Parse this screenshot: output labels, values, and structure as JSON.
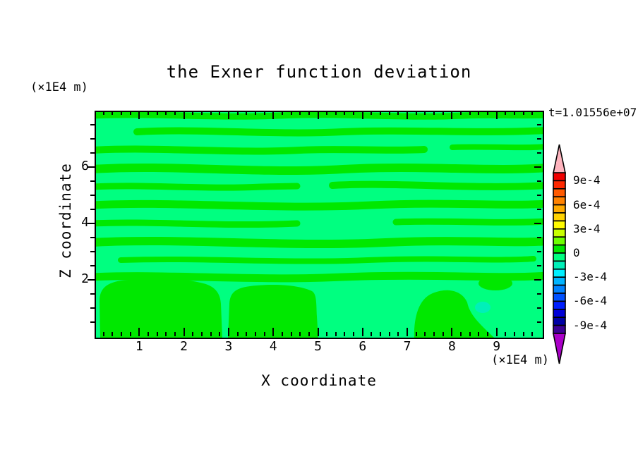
{
  "title": "the Exner function deviation",
  "time_label": "t=1.01556e+07",
  "x_axis": {
    "label": "X coordinate",
    "unit_label": "(×1E4 m)",
    "range": [
      0,
      10
    ],
    "minor_step": 0.2,
    "major_ticks": [
      1,
      2,
      3,
      4,
      5,
      6,
      7,
      8,
      9
    ],
    "tick_labels": [
      "1",
      "2",
      "3",
      "4",
      "5",
      "6",
      "7",
      "8",
      "9"
    ]
  },
  "z_axis": {
    "label": "Z coordinate",
    "unit_label": "(×1E4 m)",
    "range": [
      0,
      8
    ],
    "minor_step": 0.5,
    "major_ticks": [
      2,
      4,
      6
    ],
    "tick_labels": [
      "2",
      "4",
      "6"
    ]
  },
  "colorbar": {
    "tick_labels": [
      "9e-4",
      "6e-4",
      "3e-4",
      "0",
      "-3e-4",
      "-6e-4",
      "-9e-4"
    ],
    "label_boundary_index": [
      1,
      4,
      7,
      10,
      13,
      16,
      19
    ],
    "box_colors_top_to_bottom": [
      "#f00000",
      "#ff2800",
      "#ff5a00",
      "#ff8200",
      "#ffaa00",
      "#ffd200",
      "#fffa00",
      "#c8ff00",
      "#6eff00",
      "#00e800",
      "#00ff80",
      "#00f0b9",
      "#00f0ff",
      "#00b4ff",
      "#0082ff",
      "#0050ff",
      "#001eff",
      "#0000d7",
      "#0000a5",
      "#3c0096"
    ],
    "over_arrow_color": "#ffb4be",
    "under_arrow_color": "#aa00c8"
  },
  "plot_colors": {
    "band_positive": "#00e800",
    "band_negative": "#00ff80",
    "pocket_negative2": "#00f0b9"
  },
  "chart_data": {
    "type": "filled-contour",
    "title": "the Exner function deviation",
    "xlabel": "X coordinate",
    "ylabel": "Z coordinate",
    "axis_scale_factor": "(×1E4 m)",
    "xlim": [
      0,
      10
    ],
    "ylim": [
      0,
      8
    ],
    "time_annotation": "t=1.01556e+07",
    "contour_interval": 0.0001,
    "colorbar_range": [
      -0.001,
      0.001
    ],
    "labeled_levels": [
      0.0009,
      0.0006,
      0.0003,
      0,
      -0.0003,
      -0.0006,
      -0.0009
    ],
    "visible_value_range": [
      -0.0002,
      0.0001
    ],
    "field_description": "Nearly all values lie in [-1e-4, 1e-4]: thin wavy horizontal bands of 0..1e-4 (green) alternate with -1e-4..0 (spring green) above z≈2; below z≈2 the field is mostly -1e-4..0 with rounded 0..1e-4 blobs near x 0.1-2.8, x 2.9-5.0 and x 7.1-9.1, plus a small -2e-4..-1e-4 pocket near x≈8.6, z≈1.1",
    "legend_position": "right colorbar with over/under arrow caps"
  }
}
